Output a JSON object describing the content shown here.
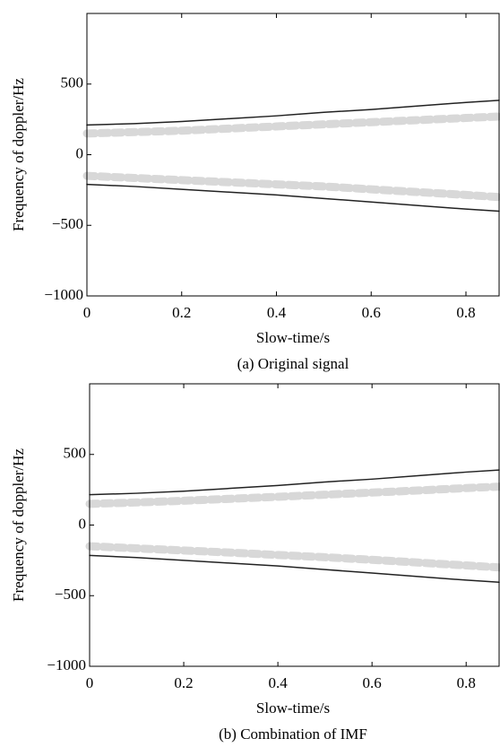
{
  "chart_data": [
    {
      "type": "line",
      "title": "(a) Original signal",
      "xlabel": "Slow-time/s",
      "ylabel": "Frequency of doppler/Hz",
      "xlim": [
        0,
        0.87
      ],
      "ylim": [
        -1000,
        1000
      ],
      "xticks": [
        0,
        0.2,
        0.4,
        0.6,
        0.8
      ],
      "yticks": [
        {
          "value": -1000,
          "label": "−1000"
        },
        {
          "value": -500,
          "label": "−500"
        },
        0,
        500
      ],
      "x": [
        0,
        0.1,
        0.2,
        0.3,
        0.4,
        0.5,
        0.6,
        0.7,
        0.8,
        0.87
      ],
      "series": [
        {
          "color": "#222222",
          "values": [
            210,
            220,
            235,
            255,
            275,
            300,
            320,
            345,
            370,
            385
          ]
        },
        {
          "color": "#222222",
          "values": [
            -210,
            -225,
            -245,
            -265,
            -285,
            -310,
            -335,
            -360,
            -385,
            -400
          ]
        },
        {
          "color": "#d8d8d8",
          "values": [
            150,
            160,
            170,
            185,
            200,
            215,
            230,
            245,
            260,
            270
          ]
        },
        {
          "color": "#d8d8d8",
          "values": [
            -150,
            -165,
            -180,
            -195,
            -210,
            -225,
            -245,
            -265,
            -285,
            -300
          ]
        }
      ]
    },
    {
      "type": "line",
      "title": "(b) Combination of IMF",
      "xlabel": "Slow-time/s",
      "ylabel": "Frequency of doppler/Hz",
      "xlim": [
        0,
        0.87
      ],
      "ylim": [
        -1000,
        1000
      ],
      "xticks": [
        0,
        0.2,
        0.4,
        0.6,
        0.8
      ],
      "yticks": [
        {
          "value": -1000,
          "label": "−1000"
        },
        {
          "value": -500,
          "label": "−500"
        },
        0,
        500
      ],
      "x": [
        0,
        0.1,
        0.2,
        0.3,
        0.4,
        0.5,
        0.6,
        0.7,
        0.8,
        0.87
      ],
      "series": [
        {
          "color": "#222222",
          "values": [
            215,
            225,
            240,
            260,
            280,
            305,
            325,
            350,
            375,
            390
          ]
        },
        {
          "color": "#222222",
          "values": [
            -215,
            -230,
            -250,
            -270,
            -290,
            -315,
            -340,
            -365,
            -390,
            -405
          ]
        },
        {
          "color": "#d8d8d8",
          "values": [
            150,
            160,
            172,
            186,
            200,
            215,
            230,
            245,
            262,
            272
          ]
        },
        {
          "color": "#d8d8d8",
          "values": [
            -150,
            -165,
            -180,
            -195,
            -212,
            -228,
            -246,
            -266,
            -286,
            -300
          ]
        }
      ]
    }
  ]
}
